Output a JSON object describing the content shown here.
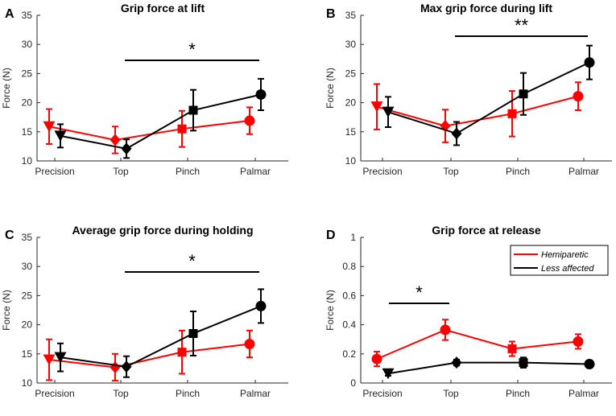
{
  "colors": {
    "hemiparetic": "#ff0000",
    "less_affected": "#000000",
    "axis": "#262626"
  },
  "legend": {
    "hemiparetic": "Hemiparetic",
    "less_affected": "Less affected"
  },
  "chart_data": [
    {
      "type": "line",
      "letter": "A",
      "title": "Grip force at lift",
      "xlabel": "",
      "ylabel": "Force (N)",
      "categories": [
        "Precision",
        "Top",
        "Pinch",
        "Palmar"
      ],
      "ylim": [
        10,
        35
      ],
      "yticks": [
        "10",
        "15",
        "20",
        "25",
        "30",
        "35"
      ],
      "significance": {
        "label": "*",
        "from": "Top",
        "to": "Palmar"
      },
      "series": [
        {
          "name": "Hemiparetic",
          "color": "#ff0000",
          "markers": [
            "triangle-down",
            "diamond",
            "square",
            "circle"
          ],
          "values": [
            15.9,
            13.6,
            15.5,
            16.9
          ],
          "errors": [
            3.0,
            2.3,
            3.1,
            2.3
          ]
        },
        {
          "name": "Less affected",
          "color": "#000000",
          "markers": [
            "triangle-down",
            "diamond",
            "square",
            "circle"
          ],
          "values": [
            14.3,
            12.1,
            18.7,
            21.4
          ],
          "errors": [
            2.0,
            1.6,
            3.5,
            2.7
          ]
        }
      ]
    },
    {
      "type": "line",
      "letter": "B",
      "title": "Max grip force during lift",
      "xlabel": "",
      "ylabel": "Force (N)",
      "categories": [
        "Precision",
        "Top",
        "Pinch",
        "Palmar"
      ],
      "ylim": [
        10,
        35
      ],
      "yticks": [
        "10",
        "15",
        "20",
        "25",
        "30",
        "35"
      ],
      "significance": {
        "label": "**",
        "from": "Top",
        "to": "Palmar"
      },
      "series": [
        {
          "name": "Hemiparetic",
          "color": "#ff0000",
          "markers": [
            "triangle-down",
            "diamond",
            "square",
            "circle"
          ],
          "values": [
            19.3,
            16.0,
            18.1,
            21.1
          ],
          "errors": [
            3.9,
            2.8,
            3.9,
            2.4
          ]
        },
        {
          "name": "Less affected",
          "color": "#000000",
          "markers": [
            "triangle-down",
            "diamond",
            "square",
            "circle"
          ],
          "values": [
            18.4,
            14.7,
            21.5,
            26.9
          ],
          "errors": [
            2.6,
            2.0,
            3.6,
            2.9
          ]
        }
      ]
    },
    {
      "type": "line",
      "letter": "C",
      "title": "Average grip force during holding",
      "xlabel": "",
      "ylabel": "Force (N)",
      "categories": [
        "Precision",
        "Top",
        "Pinch",
        "Palmar"
      ],
      "ylim": [
        10,
        35
      ],
      "yticks": [
        "10",
        "15",
        "20",
        "25",
        "30",
        "35"
      ],
      "significance": {
        "label": "*",
        "from": "Top",
        "to": "Palmar"
      },
      "series": [
        {
          "name": "Hemiparetic",
          "color": "#ff0000",
          "markers": [
            "triangle-down",
            "diamond",
            "square",
            "circle"
          ],
          "values": [
            14.0,
            12.7,
            15.3,
            16.7
          ],
          "errors": [
            3.5,
            2.3,
            3.7,
            2.3
          ]
        },
        {
          "name": "Less affected",
          "color": "#000000",
          "markers": [
            "triangle-down",
            "diamond",
            "square",
            "circle"
          ],
          "values": [
            14.4,
            12.8,
            18.5,
            23.2
          ],
          "errors": [
            2.4,
            1.8,
            3.8,
            2.9
          ]
        }
      ]
    },
    {
      "type": "line",
      "letter": "D",
      "title": "Grip force at release",
      "xlabel": "",
      "ylabel": "Force (N)",
      "categories": [
        "Precision",
        "Top",
        "Pinch",
        "Palmar"
      ],
      "ylim": [
        0,
        1
      ],
      "yticks": [
        "0",
        "0.2",
        "0.4",
        "0.6",
        "0.8",
        "1"
      ],
      "significance": {
        "label": "*",
        "from": "Precision",
        "to": "Top"
      },
      "legend_position": "top-right",
      "series": [
        {
          "name": "Hemiparetic",
          "color": "#ff0000",
          "markers": [
            "circle",
            "circle",
            "square",
            "circle"
          ],
          "values": [
            0.165,
            0.365,
            0.235,
            0.285
          ],
          "errors": [
            0.05,
            0.07,
            0.05,
            0.05
          ]
        },
        {
          "name": "Less affected",
          "color": "#000000",
          "markers": [
            "triangle-down",
            "diamond",
            "square",
            "circle"
          ],
          "values": [
            0.065,
            0.14,
            0.14,
            0.13
          ],
          "errors": [
            0.015,
            0.02,
            0.035,
            0.025
          ]
        }
      ]
    }
  ]
}
